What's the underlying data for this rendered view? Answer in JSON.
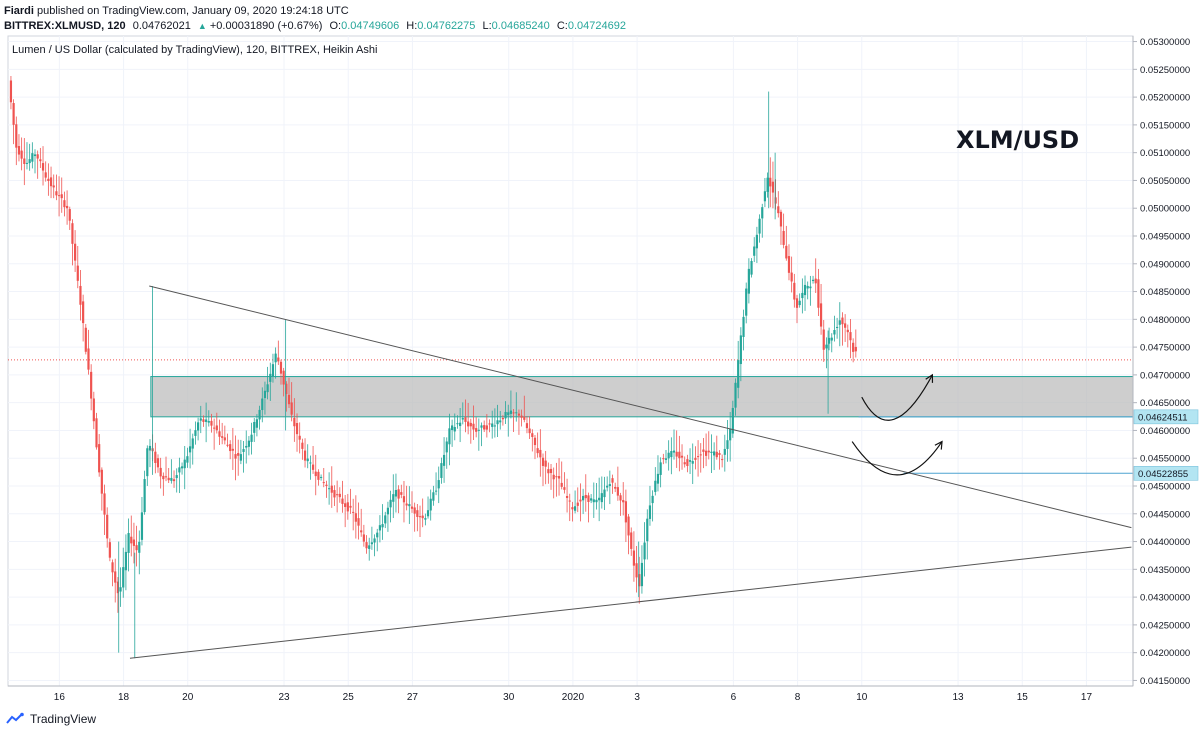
{
  "header": {
    "author": "Fiardi",
    "published": "published on TradingView.com, January 09, 2020 19:24:18 UTC",
    "symbol": "BITTREX:XLMUSD, 120",
    "last": "0.04762021",
    "change": "+0.00031890 (+0.67%)",
    "o_label": "O:",
    "o": "0.04749606",
    "h_label": "H:",
    "h": "0.04762275",
    "l_label": "L:",
    "l": "0.04685240",
    "c_label": "C:",
    "c": "0.04724692"
  },
  "footer": {
    "brand": "TradingView"
  },
  "colors": {
    "up": "#26a69a",
    "down": "#ef5350",
    "zone": "#bdbdbd",
    "zone_border": "#26a69a",
    "badge": "#b3e5f2"
  },
  "chart_data": {
    "type": "candlestick",
    "title": "Lumen / US Dollar (calculated by TradingView), 120, BITTREX, Heikin Ashi",
    "annotation": "XLM/USD",
    "ylim": [
      0.0414,
      0.0531
    ],
    "xlim": [
      14.4,
      17.8
    ],
    "y_ticks": [
      "0.05300000",
      "0.05250000",
      "0.05200000",
      "0.05150000",
      "0.05100000",
      "0.05050000",
      "0.05000000",
      "0.04950000",
      "0.04900000",
      "0.04850000",
      "0.04800000",
      "0.04750000",
      "0.04700000",
      "0.04650000",
      "0.04600000",
      "0.04550000",
      "0.04500000",
      "0.04450000",
      "0.04400000",
      "0.04350000",
      "0.04300000",
      "0.04250000",
      "0.04200000",
      "0.04150000"
    ],
    "x_ticks": [
      {
        "label": "16",
        "t": 16
      },
      {
        "label": "18",
        "t": 18
      },
      {
        "label": "20",
        "t": 20
      },
      {
        "label": "23",
        "t": 23
      },
      {
        "label": "25",
        "t": 25
      },
      {
        "label": "27",
        "t": 27
      },
      {
        "label": "30",
        "t": 30
      },
      {
        "label": "2020",
        "t": 32
      },
      {
        "label": "3",
        "t": 34
      },
      {
        "label": "6",
        "t": 37
      },
      {
        "label": "8",
        "t": 39
      },
      {
        "label": "10",
        "t": 41
      },
      {
        "label": "13",
        "t": 44
      },
      {
        "label": "15",
        "t": 46
      },
      {
        "label": "17",
        "t": 48
      }
    ],
    "anchors": [
      [
        14.45,
        0.0523
      ],
      [
        14.7,
        0.0511
      ],
      [
        15.0,
        0.0508
      ],
      [
        15.3,
        0.051
      ],
      [
        15.6,
        0.0506
      ],
      [
        15.9,
        0.0503
      ],
      [
        16.3,
        0.05
      ],
      [
        16.7,
        0.0483
      ],
      [
        17.0,
        0.0468
      ],
      [
        17.3,
        0.0452
      ],
      [
        17.6,
        0.0437
      ],
      [
        17.9,
        0.043
      ],
      [
        18.2,
        0.0441
      ],
      [
        18.5,
        0.0438
      ],
      [
        18.8,
        0.0458
      ],
      [
        19.2,
        0.0452
      ],
      [
        19.6,
        0.0451
      ],
      [
        20.0,
        0.0455
      ],
      [
        20.4,
        0.0462
      ],
      [
        20.8,
        0.0461
      ],
      [
        21.2,
        0.0458
      ],
      [
        21.6,
        0.0455
      ],
      [
        22.0,
        0.0459
      ],
      [
        22.4,
        0.0466
      ],
      [
        22.8,
        0.0474
      ],
      [
        23.3,
        0.0462
      ],
      [
        23.7,
        0.0455
      ],
      [
        24.2,
        0.0451
      ],
      [
        24.7,
        0.0448
      ],
      [
        25.2,
        0.0445
      ],
      [
        25.6,
        0.0439
      ],
      [
        26.0,
        0.0442
      ],
      [
        26.5,
        0.0449
      ],
      [
        27.0,
        0.0446
      ],
      [
        27.4,
        0.0444
      ],
      [
        27.8,
        0.045
      ],
      [
        28.2,
        0.046
      ],
      [
        28.6,
        0.0462
      ],
      [
        29.0,
        0.046
      ],
      [
        29.5,
        0.0461
      ],
      [
        30.0,
        0.0463
      ],
      [
        30.4,
        0.0463
      ],
      [
        30.8,
        0.0458
      ],
      [
        31.2,
        0.0453
      ],
      [
        31.6,
        0.0451
      ],
      [
        32.0,
        0.0446
      ],
      [
        32.4,
        0.0448
      ],
      [
        32.8,
        0.0447
      ],
      [
        33.2,
        0.0451
      ],
      [
        33.6,
        0.0447
      ],
      [
        33.9,
        0.0437
      ],
      [
        34.1,
        0.0432
      ],
      [
        34.4,
        0.0446
      ],
      [
        34.8,
        0.0455
      ],
      [
        35.2,
        0.0456
      ],
      [
        35.6,
        0.0454
      ],
      [
        36.0,
        0.0456
      ],
      [
        36.4,
        0.0456
      ],
      [
        36.7,
        0.0455
      ],
      [
        36.95,
        0.046
      ],
      [
        37.2,
        0.0473
      ],
      [
        37.5,
        0.0488
      ],
      [
        37.8,
        0.0496
      ],
      [
        38.1,
        0.0506
      ],
      [
        38.4,
        0.05
      ],
      [
        38.7,
        0.0491
      ],
      [
        39.0,
        0.0482
      ],
      [
        39.3,
        0.0486
      ],
      [
        39.6,
        0.0487
      ],
      [
        39.85,
        0.0475
      ],
      [
        40.1,
        0.0477
      ],
      [
        40.35,
        0.048
      ],
      [
        40.6,
        0.0478
      ],
      [
        40.8,
        0.0474
      ]
    ],
    "zone": [
      0.04624511,
      0.04697
    ],
    "levels": [
      {
        "label": "0.04624511",
        "value": 0.04624511
      },
      {
        "label": "0.04522855",
        "value": 0.04522855
      }
    ],
    "last_line": 0.04727,
    "trendlines": [
      [
        [
          18.8,
          0.0486
        ],
        [
          49.4,
          0.04425
        ]
      ],
      [
        [
          18.2,
          0.0419
        ],
        [
          49.4,
          0.0439
        ]
      ]
    ],
    "arrows": [
      [
        [
          41.0,
          0.0466
        ],
        [
          42.0,
          0.0462
        ],
        [
          43.2,
          0.047
        ]
      ],
      [
        [
          40.7,
          0.0458
        ],
        [
          42.1,
          0.0452
        ],
        [
          43.5,
          0.0458
        ]
      ]
    ]
  }
}
